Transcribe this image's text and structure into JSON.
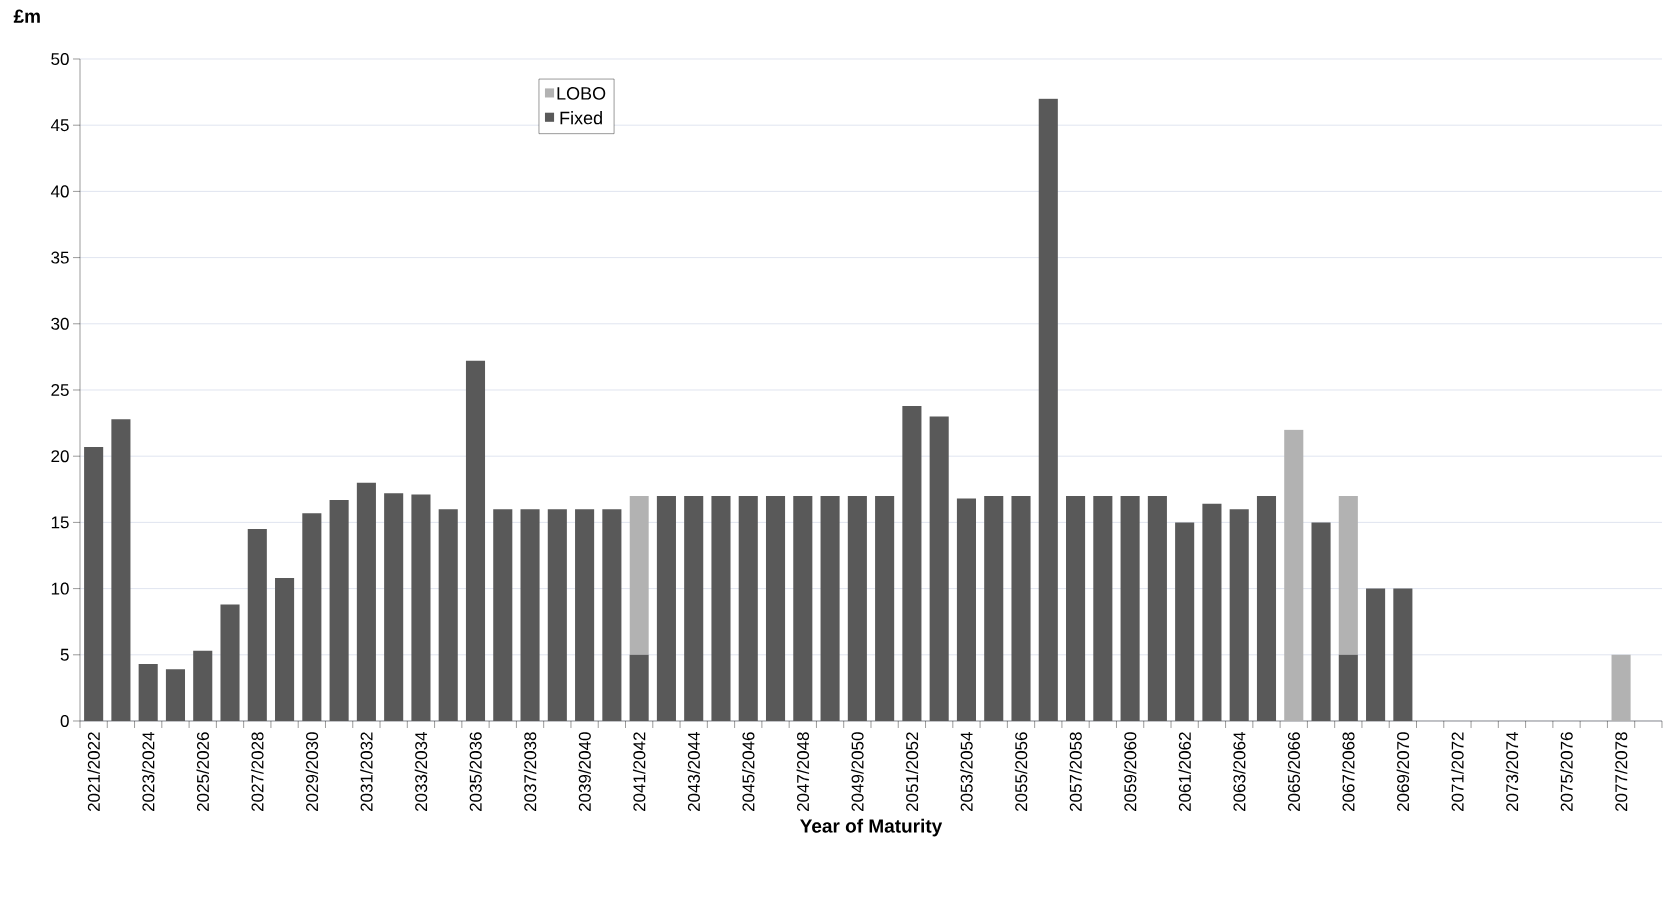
{
  "chart_data": {
    "type": "bar",
    "stacked": true,
    "ylabel": "£m",
    "xlabel": "Year of Maturity",
    "categories": [
      "2021/2022",
      null,
      "2023/2024",
      null,
      "2025/2026",
      null,
      "2027/2028",
      null,
      "2029/2030",
      null,
      "2031/2032",
      null,
      "2033/2034",
      null,
      "2035/2036",
      null,
      "2037/2038",
      null,
      "2039/2040",
      null,
      "2041/2042",
      null,
      "2043/2044",
      null,
      "2045/2046",
      null,
      "2047/2048",
      null,
      "2049/2050",
      null,
      "2051/2052",
      null,
      "2053/2054",
      null,
      "2055/2056",
      null,
      "2057/2058",
      null,
      "2059/2060",
      null,
      "2061/2062",
      null,
      "2063/2064",
      null,
      "2065/2066",
      null,
      "2067/2068",
      null,
      "2069/2070",
      null,
      "2071/2072",
      null,
      "2073/2074",
      null,
      "2075/2076",
      null,
      "2077/2078",
      null
    ],
    "series": [
      {
        "name": "Fixed",
        "color": "#595959",
        "values": [
          20.7,
          22.8,
          4.3,
          3.9,
          5.3,
          8.8,
          14.5,
          10.8,
          15.7,
          16.7,
          18,
          17.2,
          17.1,
          16,
          27.2,
          16,
          16,
          16,
          16,
          16,
          5,
          17,
          17,
          17,
          17,
          17,
          17,
          17,
          17,
          17,
          23.8,
          23,
          16.8,
          17,
          17,
          47,
          17,
          17,
          17,
          17,
          15,
          16.4,
          16,
          17,
          0,
          15,
          5,
          10,
          10,
          0,
          0,
          0,
          0,
          0,
          0,
          0,
          0,
          0
        ]
      },
      {
        "name": "LOBO",
        "color": "#b2b2b2",
        "values": [
          0,
          0,
          0,
          0,
          0,
          0,
          0,
          0,
          0,
          0,
          0,
          0,
          0,
          0,
          0,
          0,
          0,
          0,
          0,
          0,
          12,
          0,
          0,
          0,
          0,
          0,
          0,
          0,
          0,
          0,
          0,
          0,
          0,
          0,
          0,
          0,
          0,
          0,
          0,
          0,
          0,
          0,
          0,
          0,
          22,
          0,
          12,
          0,
          0,
          0,
          0,
          0,
          0,
          0,
          0,
          0,
          5,
          0
        ]
      }
    ],
    "ylim": [
      0,
      50
    ],
    "yticks": [
      0,
      5,
      10,
      15,
      20,
      25,
      30,
      35,
      40,
      45,
      50
    ],
    "grid": "y",
    "legend": "top left"
  }
}
